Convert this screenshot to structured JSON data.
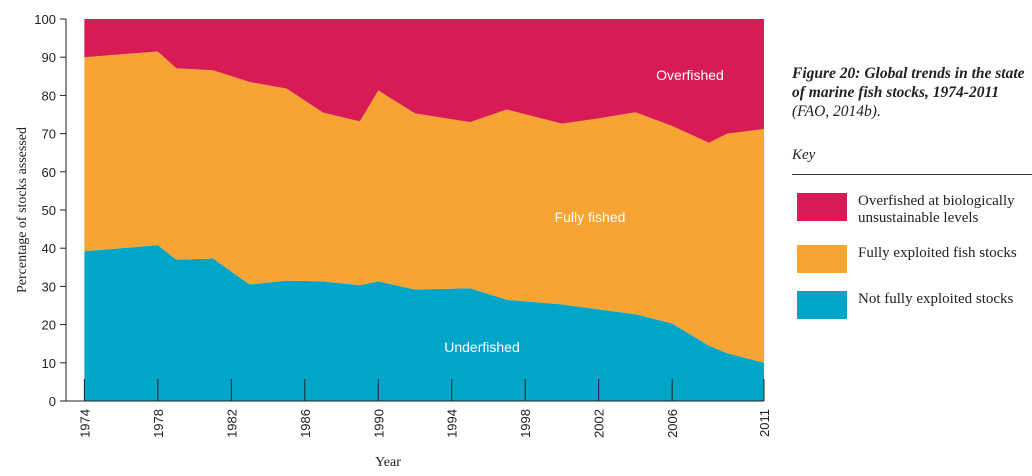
{
  "chart_data": {
    "type": "area",
    "stacked": true,
    "xlabel": "Year",
    "ylabel": "Percentage of stocks assessed",
    "caption_title": "Figure 20: Global trends in the state of marine fish stocks, 1974-2011",
    "caption_source": "(FAO, 2014b).",
    "legend_title": "Key",
    "x": [
      1974,
      1978,
      1979,
      1981,
      1983,
      1985,
      1987,
      1989,
      1990,
      1992,
      1995,
      1997,
      2000,
      2002,
      2004,
      2006,
      2008,
      2009,
      2011
    ],
    "series": [
      {
        "name": "Overfished at biologically unsustainable levels",
        "label": "Overfished",
        "color": "#d81b55",
        "values": [
          10,
          8.5,
          12.9,
          13.4,
          16.5,
          18.2,
          24.5,
          26.8,
          18.7,
          24.7,
          27,
          23.7,
          27.4,
          26,
          24.4,
          28,
          32.4,
          30,
          28.8
        ]
      },
      {
        "name": "Fully exploited fish stocks",
        "label": "Fully fished",
        "color": "#f6a534",
        "values": [
          50.8,
          50.7,
          50.1,
          49.3,
          53,
          50.3,
          44.2,
          42.9,
          50,
          46.1,
          43.5,
          49.8,
          47.3,
          50,
          52.9,
          51.7,
          53.1,
          57.5,
          61.2
        ]
      },
      {
        "name": "Not fully exploited stocks",
        "label": "Underfished",
        "color": "#00a5c8",
        "values": [
          39.2,
          40.8,
          37,
          37.3,
          30.5,
          31.5,
          31.3,
          30.3,
          31.3,
          29.2,
          29.5,
          26.5,
          25.3,
          24,
          22.7,
          20.3,
          14.5,
          12.5,
          10
        ]
      }
    ],
    "xlim": [
      1973,
      2011
    ],
    "xticks": [
      1974,
      1978,
      1982,
      1986,
      1990,
      1994,
      1998,
      2002,
      2006,
      2011
    ],
    "ylim": [
      0,
      100
    ],
    "yticks": [
      0,
      10,
      20,
      30,
      40,
      50,
      60,
      70,
      80,
      90,
      100
    ]
  }
}
